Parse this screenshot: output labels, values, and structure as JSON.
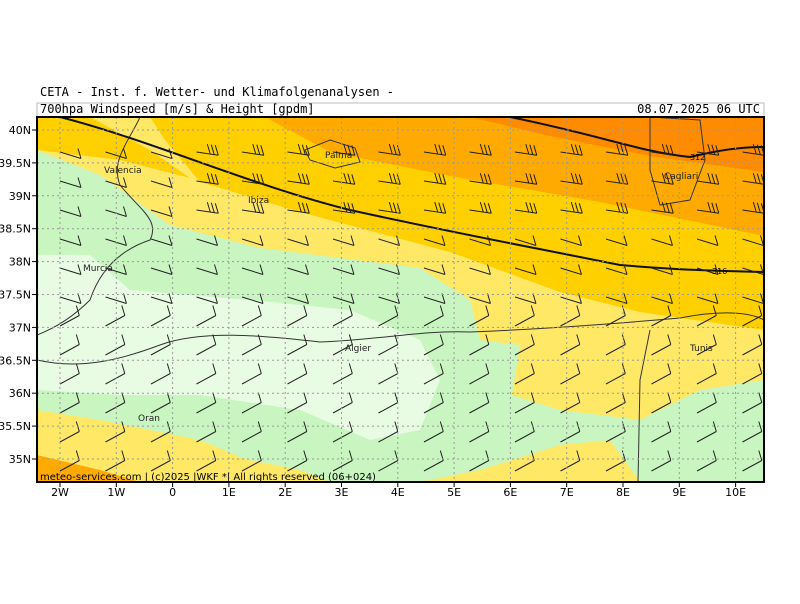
{
  "header": {
    "line1": "CETA - Inst. f. Wetter- und Klimafolgenanalysen -",
    "subtitle": "700hpa Windspeed [m/s] & Height [gpdm]",
    "datetime": "08.07.2025 06 UTC"
  },
  "axes": {
    "lon_ticks": [
      "2W",
      "1W",
      "0",
      "1E",
      "2E",
      "3E",
      "4E",
      "5E",
      "6E",
      "7E",
      "8E",
      "9E",
      "10E"
    ],
    "lat_ticks": [
      "40N",
      "39.5N",
      "39N",
      "38.5N",
      "38N",
      "37.5N",
      "37N",
      "36.5N",
      "36N",
      "35.5N",
      "35N"
    ]
  },
  "places": [
    "Valencia",
    "Palma",
    "Ibiza",
    "Murcia",
    "Cagliari",
    "Algier",
    "Tunis",
    "Oran"
  ],
  "contour_labels": [
    "312",
    "316"
  ],
  "footer": "meteo-services.com | (c)2025 |WKF *| All rights reserved (06+024)"
}
